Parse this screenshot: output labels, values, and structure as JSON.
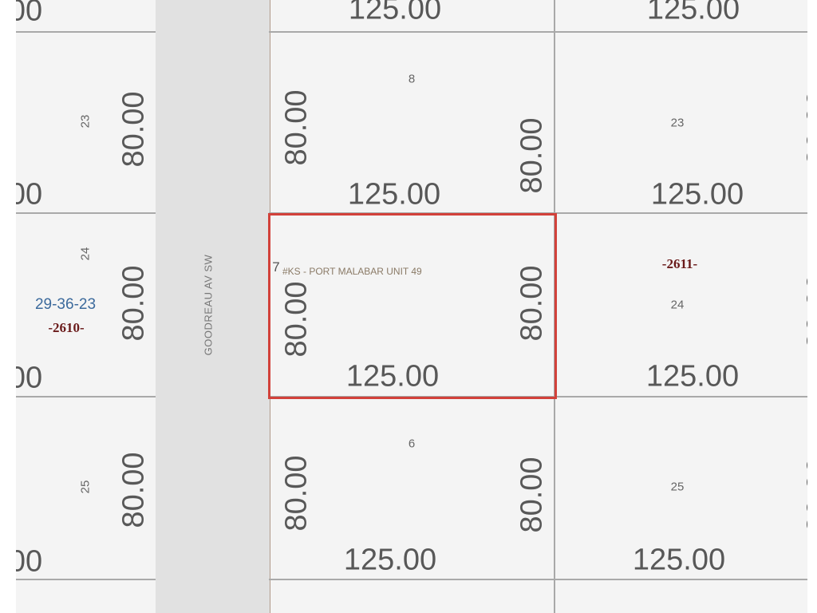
{
  "map": {
    "road_name": "GOODREAU AV SW",
    "subdivision": "#KS - PORT MALABAR UNIT 49",
    "section_township_range": "29-36-23",
    "selected_color": "#d2413a",
    "dimensions": {
      "frontage": "125.00",
      "depth": "80.00"
    },
    "left_lots": [
      "23",
      "24",
      "25"
    ],
    "left_address": "-2610-",
    "middle_lots": [
      "8",
      "7",
      "6"
    ],
    "right_lots": [
      "23",
      "24",
      "25"
    ],
    "right_address": "-2611-",
    "selected_lot": "7"
  }
}
